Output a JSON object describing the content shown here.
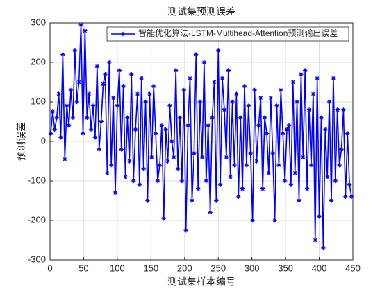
{
  "chart_data": {
    "type": "line",
    "title": "测试集预测误差",
    "xlabel": "测试集样本编号",
    "ylabel": "预测误差",
    "xlim": [
      0,
      450
    ],
    "xticks": [
      0,
      50,
      100,
      150,
      200,
      250,
      300,
      350,
      400,
      450
    ],
    "ylim": [
      -300,
      300
    ],
    "yticks": [
      -300,
      -200,
      -100,
      0,
      100,
      200,
      300
    ],
    "grid": true,
    "legend": "northeast",
    "series": [
      {
        "name": "智能优化算法-LSTM-Multihead-Attention预测输出误差",
        "color": "#0000ff",
        "x": [
          1,
          4,
          7,
          10,
          13,
          16,
          19,
          22,
          25,
          28,
          31,
          34,
          37,
          40,
          43,
          46,
          49,
          52,
          55,
          58,
          61,
          64,
          67,
          70,
          73,
          76,
          79,
          82,
          85,
          88,
          91,
          94,
          97,
          100,
          103,
          106,
          109,
          112,
          115,
          118,
          121,
          124,
          127,
          130,
          133,
          136,
          139,
          142,
          145,
          148,
          151,
          154,
          157,
          160,
          163,
          166,
          169,
          172,
          175,
          178,
          181,
          184,
          187,
          190,
          193,
          196,
          199,
          202,
          205,
          208,
          211,
          214,
          217,
          220,
          223,
          226,
          229,
          232,
          235,
          238,
          241,
          244,
          247,
          250,
          253,
          256,
          259,
          262,
          265,
          268,
          271,
          274,
          277,
          280,
          283,
          286,
          289,
          292,
          295,
          298,
          301,
          304,
          307,
          310,
          313,
          316,
          319,
          322,
          325,
          328,
          331,
          334,
          337,
          340,
          343,
          346,
          349,
          352,
          355,
          358,
          361,
          364,
          367,
          370,
          373,
          376,
          379,
          382,
          385,
          388,
          391,
          394,
          397,
          400,
          403,
          406,
          409,
          412,
          415,
          418,
          421,
          424,
          427,
          430,
          433,
          436,
          439,
          442,
          445,
          448
        ],
        "values": [
          20,
          75,
          30,
          60,
          120,
          10,
          220,
          -45,
          90,
          40,
          130,
          60,
          230,
          100,
          150,
          295,
          20,
          280,
          60,
          120,
          30,
          90,
          10,
          190,
          -20,
          50,
          145,
          170,
          -80,
          200,
          -60,
          110,
          -130,
          90,
          180,
          -20,
          140,
          -90,
          60,
          -50,
          170,
          -100,
          30,
          120,
          -110,
          160,
          -70,
          100,
          -150,
          120,
          -40,
          140,
          20,
          -100,
          -60,
          40,
          -195,
          30,
          -50,
          90,
          0,
          -40,
          180,
          -70,
          60,
          -100,
          130,
          -225,
          40,
          160,
          -150,
          -30,
          220,
          -120,
          100,
          -40,
          200,
          -100,
          40,
          -180,
          60,
          150,
          -150,
          230,
          -110,
          160,
          80,
          -40,
          180,
          -90,
          100,
          -60,
          120,
          -140,
          60,
          -120,
          140,
          -60,
          90,
          -30,
          -200,
          130,
          -50,
          40,
          110,
          -120,
          60,
          20,
          -80,
          110,
          -30,
          -200,
          90,
          -60,
          130,
          20,
          -100,
          30,
          40,
          -110,
          150,
          -80,
          100,
          -150,
          170,
          -40,
          180,
          -120,
          80,
          -60,
          120,
          -250,
          160,
          -190,
          60,
          -270,
          30,
          -90,
          100,
          -150,
          160,
          -100,
          80,
          -60,
          -20,
          80,
          -140,
          20,
          -110,
          -140
        ]
      }
    ]
  }
}
